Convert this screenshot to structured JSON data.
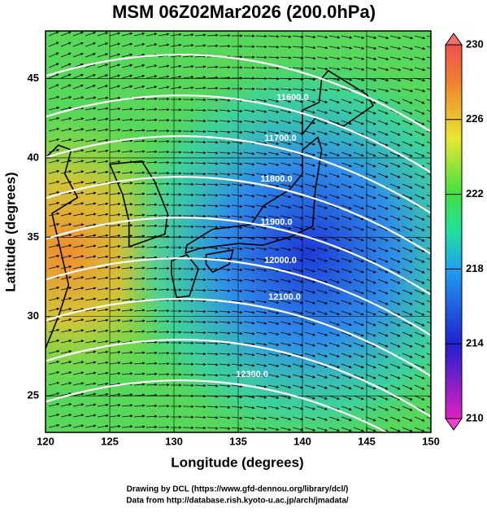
{
  "chart_data": {
    "type": "map",
    "title": "MSM 06Z02Mar2026 (200.0hPa)",
    "x_label": "Longitude (degrees)",
    "y_label": "Latitude  (degrees)",
    "xlim": [
      120,
      150
    ],
    "ylim": [
      22.7,
      48
    ],
    "xticks": [
      120,
      125,
      130,
      135,
      140,
      145,
      150
    ],
    "yticks": [
      25,
      30,
      35,
      40,
      45
    ],
    "grid": true,
    "colorbar": {
      "lim": [
        210,
        230
      ],
      "ticks": [
        210,
        214,
        218,
        222,
        226,
        230
      ]
    },
    "contour_labels": [
      "11600.0",
      "11700.0",
      "11800.0",
      "11900.0",
      "12000.0",
      "12100.0",
      "12300.0"
    ],
    "footer": [
      "Drawing by DCL (https://www.gfd-dennou.org/library/dcl/)",
      "Data from http://database.rish.kyoto-u.ac.jp/arch/jmadata/"
    ]
  }
}
